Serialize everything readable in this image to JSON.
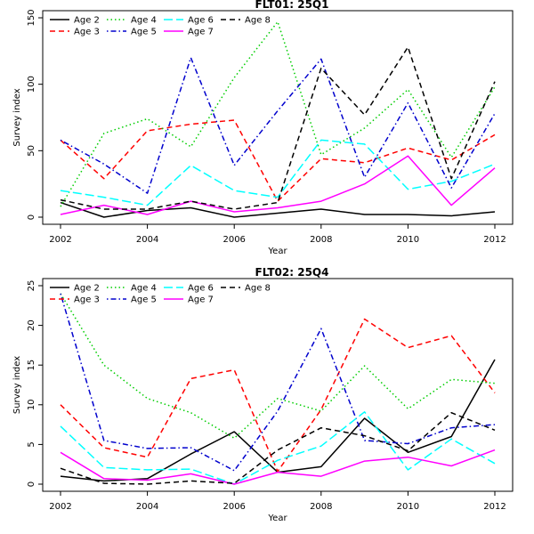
{
  "chart_data": [
    {
      "type": "line",
      "title": "FLT01: 25Q1",
      "xlabel": "Year",
      "ylabel": "Survey index",
      "xlim": [
        2002,
        2012
      ],
      "ylim": [
        0,
        150
      ],
      "x_ticks": [
        2002,
        2004,
        2006,
        2008,
        2010,
        2012
      ],
      "y_ticks": [
        0,
        50,
        100,
        150
      ],
      "legend_position": "top-left",
      "x": [
        2002,
        2003,
        2004,
        2005,
        2006,
        2007,
        2008,
        2009,
        2010,
        2011,
        2012
      ],
      "series": [
        {
          "name": "Age 2",
          "color": "#000000",
          "dash": "solid",
          "values": [
            11,
            0,
            5,
            7,
            0,
            3,
            6,
            2,
            2,
            1,
            4
          ]
        },
        {
          "name": "Age 3",
          "color": "#ff0000",
          "dash": "dashed",
          "values": [
            58,
            29,
            65,
            70,
            73,
            12,
            44,
            41,
            52,
            43,
            62
          ]
        },
        {
          "name": "Age 4",
          "color": "#00cd00",
          "dash": "dotted",
          "values": [
            8,
            63,
            74,
            53,
            105,
            147,
            47,
            67,
            96,
            45,
            98
          ]
        },
        {
          "name": "Age 5",
          "color": "#0000cd",
          "dash": "dotdash",
          "values": [
            58,
            40,
            18,
            120,
            39,
            80,
            119,
            30,
            86,
            22,
            78
          ]
        },
        {
          "name": "Age 6",
          "color": "#00ffff",
          "dash": "longdash",
          "values": [
            20,
            15,
            9,
            39,
            20,
            15,
            58,
            55,
            21,
            27,
            40
          ]
        },
        {
          "name": "Age 7",
          "color": "#ff00ff",
          "dash": "solid",
          "values": [
            2,
            9,
            2,
            12,
            4,
            7,
            12,
            25,
            46,
            9,
            37
          ]
        },
        {
          "name": "Age 8",
          "color": "#000000",
          "dash": "dashed",
          "values": [
            13,
            6,
            6,
            12,
            6,
            11,
            112,
            77,
            128,
            29,
            102
          ]
        }
      ]
    },
    {
      "type": "line",
      "title": "FLT02: 25Q4",
      "xlabel": "Year",
      "ylabel": "Survey index",
      "xlim": [
        2002,
        2012
      ],
      "ylim": [
        0,
        25
      ],
      "x_ticks": [
        2002,
        2004,
        2006,
        2008,
        2010,
        2012
      ],
      "y_ticks": [
        0,
        5,
        10,
        15,
        20,
        25
      ],
      "legend_position": "top-left",
      "x": [
        2002,
        2003,
        2004,
        2005,
        2006,
        2007,
        2008,
        2009,
        2010,
        2011,
        2012
      ],
      "series": [
        {
          "name": "Age 2",
          "color": "#000000",
          "dash": "solid",
          "values": [
            1.0,
            0.4,
            0.7,
            3.8,
            6.6,
            1.5,
            2.2,
            8.3,
            4.0,
            6.0,
            15.7
          ]
        },
        {
          "name": "Age 3",
          "color": "#ff0000",
          "dash": "dashed",
          "values": [
            10.0,
            4.6,
            3.4,
            13.3,
            14.4,
            1.6,
            9.4,
            20.8,
            17.2,
            18.7,
            11.5
          ]
        },
        {
          "name": "Age 4",
          "color": "#00cd00",
          "dash": "dotted",
          "values": [
            24.0,
            15.0,
            10.8,
            9.0,
            5.8,
            10.8,
            9.2,
            14.9,
            9.5,
            13.2,
            12.7
          ]
        },
        {
          "name": "Age 5",
          "color": "#0000cd",
          "dash": "dotdash",
          "values": [
            24.0,
            5.5,
            4.5,
            4.6,
            1.7,
            9.2,
            19.6,
            5.5,
            5.1,
            7.1,
            7.5
          ]
        },
        {
          "name": "Age 6",
          "color": "#00ffff",
          "dash": "longdash",
          "values": [
            7.3,
            2.1,
            1.8,
            1.9,
            0.0,
            3.0,
            4.8,
            9.1,
            1.8,
            5.7,
            2.6
          ]
        },
        {
          "name": "Age 7",
          "color": "#ff00ff",
          "dash": "solid",
          "values": [
            4.0,
            0.7,
            0.5,
            1.3,
            0.0,
            1.5,
            1.0,
            2.9,
            3.4,
            2.3,
            4.3
          ]
        },
        {
          "name": "Age 8",
          "color": "#000000",
          "dash": "dashed",
          "values": [
            2.0,
            0.1,
            0.0,
            0.4,
            0.1,
            4.3,
            7.1,
            6.1,
            4.2,
            9.0,
            6.8
          ]
        }
      ]
    }
  ]
}
